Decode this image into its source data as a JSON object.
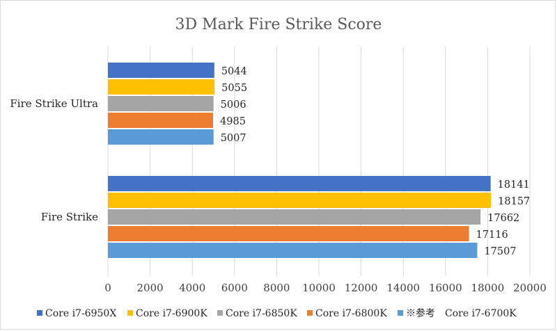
{
  "chart_data": {
    "type": "bar",
    "orientation": "horizontal",
    "title": "3D Mark Fire Strike Score",
    "categories": [
      "Fire Strike Ultra",
      "Fire Strike"
    ],
    "series": [
      {
        "name": "Core i7-6950X",
        "color": "#4472C4",
        "values": [
          5044,
          18141
        ]
      },
      {
        "name": "Core i7-6900K",
        "color": "#FFC000",
        "values": [
          5055,
          18157
        ]
      },
      {
        "name": "Core i7-6850K",
        "color": "#A5A5A5",
        "values": [
          5006,
          17662
        ]
      },
      {
        "name": "Core i7-6800K",
        "color": "#ED7D31",
        "values": [
          4985,
          17116
        ]
      },
      {
        "name": "※参考　Core i7-6700K",
        "color": "#5B9BD5",
        "values": [
          5007,
          17507
        ]
      }
    ],
    "xlim": [
      0,
      20000
    ],
    "xticks": [
      0,
      2000,
      4000,
      6000,
      8000,
      10000,
      12000,
      14000,
      16000,
      18000,
      20000
    ],
    "grid": true,
    "legend": "bottom"
  }
}
